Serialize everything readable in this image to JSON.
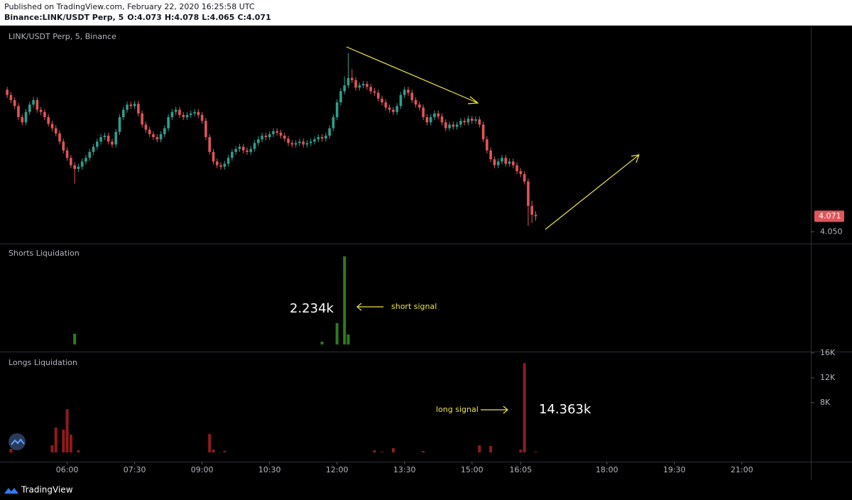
{
  "header": {
    "published": "Published on TradingView.com, February 22, 2020 16:25:58 UTC",
    "symbol": "Binance:LINK/USDT Perp, 5",
    "ohlc_labels": [
      "O:",
      "H:",
      "L:",
      "C:"
    ]
  },
  "footer": {
    "brand": "TradingView"
  },
  "chart_data": [
    {
      "type": "candlestick",
      "title": "LINK/USDT Perp, 5, Binance",
      "up_color": "#2f9e8c",
      "down_color": "#e0555a",
      "xlim": [
        "04:38",
        "22:32"
      ],
      "ylim": [
        4.034,
        4.325
      ],
      "yticks": [
        {
          "value": 4.05,
          "label": "4.050"
        }
      ],
      "x": [
        "04:40",
        "04:45",
        "04:50",
        "04:55",
        "05:00",
        "05:05",
        "05:10",
        "05:15",
        "05:20",
        "05:25",
        "05:30",
        "05:35",
        "05:40",
        "05:45",
        "05:50",
        "05:55",
        "06:00",
        "06:05",
        "06:10",
        "06:15",
        "06:20",
        "06:25",
        "06:30",
        "06:35",
        "06:40",
        "06:45",
        "06:50",
        "06:55",
        "07:00",
        "07:05",
        "07:10",
        "07:15",
        "07:20",
        "07:25",
        "07:30",
        "07:35",
        "07:40",
        "07:45",
        "07:50",
        "07:55",
        "08:00",
        "08:05",
        "08:10",
        "08:15",
        "08:20",
        "08:25",
        "08:30",
        "08:35",
        "08:40",
        "08:45",
        "08:50",
        "08:55",
        "09:00",
        "09:05",
        "09:10",
        "09:15",
        "09:20",
        "09:25",
        "09:30",
        "09:35",
        "09:40",
        "09:45",
        "09:50",
        "09:55",
        "10:00",
        "10:05",
        "10:10",
        "10:15",
        "10:20",
        "10:25",
        "10:30",
        "10:35",
        "10:40",
        "10:45",
        "10:50",
        "10:55",
        "11:00",
        "11:05",
        "11:10",
        "11:15",
        "11:20",
        "11:25",
        "11:30",
        "11:35",
        "11:40",
        "11:45",
        "11:50",
        "11:55",
        "12:00",
        "12:05",
        "12:10",
        "12:15",
        "12:20",
        "12:25",
        "12:30",
        "12:35",
        "12:40",
        "12:45",
        "12:50",
        "12:55",
        "13:00",
        "13:05",
        "13:10",
        "13:15",
        "13:20",
        "13:25",
        "13:30",
        "13:35",
        "13:40",
        "13:45",
        "13:50",
        "13:55",
        "14:00",
        "14:05",
        "14:10",
        "14:15",
        "14:20",
        "14:25",
        "14:30",
        "14:35",
        "14:40",
        "14:45",
        "14:50",
        "14:55",
        "15:00",
        "15:05",
        "15:10",
        "15:15",
        "15:20",
        "15:25",
        "15:30",
        "15:35",
        "15:40",
        "15:45",
        "15:50",
        "15:55",
        "16:00",
        "16:05",
        "16:10",
        "16:15",
        "16:20",
        "16:25"
      ],
      "open": [
        4.242,
        4.235,
        4.228,
        4.22,
        4.205,
        4.198,
        4.212,
        4.222,
        4.228,
        4.215,
        4.212,
        4.205,
        4.196,
        4.19,
        4.183,
        4.172,
        4.16,
        4.15,
        4.14,
        4.135,
        4.138,
        4.145,
        4.15,
        4.158,
        4.165,
        4.172,
        4.178,
        4.18,
        4.172,
        4.168,
        4.185,
        4.205,
        4.215,
        4.222,
        4.22,
        4.223,
        4.21,
        4.195,
        4.188,
        4.182,
        4.178,
        4.175,
        4.182,
        4.19,
        4.205,
        4.212,
        4.215,
        4.208,
        4.205,
        4.208,
        4.21,
        4.212,
        4.208,
        4.2,
        4.178,
        4.158,
        4.145,
        4.14,
        4.138,
        4.142,
        4.15,
        4.158,
        4.162,
        4.165,
        4.16,
        4.158,
        4.162,
        4.17,
        4.175,
        4.18,
        4.178,
        4.182,
        4.186,
        4.184,
        4.18,
        4.176,
        4.17,
        4.168,
        4.17,
        4.172,
        4.168,
        4.17,
        4.172,
        4.175,
        4.178,
        4.176,
        4.18,
        4.19,
        4.205,
        4.225,
        4.24,
        4.248,
        4.258,
        4.255,
        4.245,
        4.248,
        4.25,
        4.246,
        4.24,
        4.238,
        4.23,
        4.225,
        4.218,
        4.215,
        4.212,
        4.22,
        4.235,
        4.242,
        4.238,
        4.228,
        4.222,
        4.218,
        4.205,
        4.198,
        4.205,
        4.21,
        4.206,
        4.198,
        4.19,
        4.195,
        4.192,
        4.195,
        4.2,
        4.198,
        4.203,
        4.2,
        4.202,
        4.195,
        4.175,
        4.16,
        4.148,
        4.14,
        4.145,
        4.15,
        4.142,
        4.145,
        4.14,
        4.132,
        4.128,
        4.118,
        4.085,
        4.073
      ],
      "high": [
        4.246,
        4.239,
        4.232,
        4.224,
        4.209,
        4.216,
        4.226,
        4.232,
        4.232,
        4.219,
        4.216,
        4.209,
        4.2,
        4.194,
        4.187,
        4.176,
        4.164,
        4.154,
        4.144,
        4.142,
        4.149,
        4.154,
        4.162,
        4.169,
        4.176,
        4.182,
        4.184,
        4.184,
        4.176,
        4.189,
        4.209,
        4.219,
        4.226,
        4.226,
        4.227,
        4.227,
        4.214,
        4.199,
        4.192,
        4.186,
        4.182,
        4.186,
        4.194,
        4.209,
        4.216,
        4.219,
        4.219,
        4.212,
        4.212,
        4.214,
        4.216,
        4.216,
        4.212,
        4.204,
        4.182,
        4.162,
        4.149,
        4.144,
        4.146,
        4.154,
        4.162,
        4.166,
        4.169,
        4.169,
        4.164,
        4.166,
        4.174,
        4.179,
        4.184,
        4.184,
        4.186,
        4.19,
        4.19,
        4.188,
        4.184,
        4.18,
        4.174,
        4.174,
        4.176,
        4.176,
        4.174,
        4.176,
        4.179,
        4.182,
        4.182,
        4.184,
        4.194,
        4.209,
        4.229,
        4.244,
        4.26,
        4.292,
        4.27,
        4.259,
        4.252,
        4.254,
        4.254,
        4.25,
        4.244,
        4.242,
        4.234,
        4.229,
        4.222,
        4.219,
        4.224,
        4.239,
        4.246,
        4.246,
        4.242,
        4.232,
        4.226,
        4.222,
        4.209,
        4.209,
        4.214,
        4.214,
        4.21,
        4.202,
        4.199,
        4.199,
        4.199,
        4.204,
        4.204,
        4.207,
        4.207,
        4.206,
        4.206,
        4.199,
        4.179,
        4.164,
        4.152,
        4.149,
        4.154,
        4.154,
        4.149,
        4.149,
        4.144,
        4.136,
        4.132,
        4.122,
        4.092,
        4.078
      ],
      "low": [
        4.231,
        4.224,
        4.216,
        4.201,
        4.194,
        4.194,
        4.208,
        4.218,
        4.211,
        4.208,
        4.201,
        4.192,
        4.186,
        4.179,
        4.168,
        4.156,
        4.146,
        4.136,
        4.115,
        4.131,
        4.134,
        4.141,
        4.146,
        4.154,
        4.161,
        4.168,
        4.174,
        4.168,
        4.164,
        4.164,
        4.181,
        4.201,
        4.211,
        4.216,
        4.216,
        4.206,
        4.191,
        4.184,
        4.178,
        4.174,
        4.171,
        4.171,
        4.178,
        4.186,
        4.201,
        4.208,
        4.204,
        4.201,
        4.201,
        4.204,
        4.206,
        4.204,
        4.196,
        4.174,
        4.154,
        4.141,
        4.136,
        4.134,
        4.134,
        4.138,
        4.146,
        4.154,
        4.158,
        4.156,
        4.154,
        4.154,
        4.158,
        4.166,
        4.171,
        4.174,
        4.174,
        4.178,
        4.18,
        4.176,
        4.172,
        4.166,
        4.164,
        4.164,
        4.166,
        4.164,
        4.164,
        4.166,
        4.168,
        4.171,
        4.172,
        4.172,
        4.176,
        4.186,
        4.201,
        4.221,
        4.236,
        4.244,
        4.251,
        4.241,
        4.241,
        4.244,
        4.242,
        4.236,
        4.234,
        4.226,
        4.221,
        4.214,
        4.211,
        4.208,
        4.208,
        4.216,
        4.231,
        4.234,
        4.224,
        4.218,
        4.214,
        4.201,
        4.194,
        4.194,
        4.201,
        4.202,
        4.194,
        4.186,
        4.186,
        4.188,
        4.188,
        4.191,
        4.194,
        4.194,
        4.196,
        4.196,
        4.191,
        4.171,
        4.156,
        4.144,
        4.136,
        4.136,
        4.141,
        4.138,
        4.138,
        4.136,
        4.128,
        4.124,
        4.114,
        4.058,
        4.062,
        4.065
      ],
      "close": [
        4.235,
        4.228,
        4.22,
        4.205,
        4.198,
        4.212,
        4.222,
        4.228,
        4.215,
        4.212,
        4.205,
        4.196,
        4.19,
        4.183,
        4.172,
        4.16,
        4.15,
        4.14,
        4.135,
        4.138,
        4.145,
        4.15,
        4.158,
        4.165,
        4.172,
        4.178,
        4.18,
        4.172,
        4.168,
        4.185,
        4.205,
        4.215,
        4.222,
        4.22,
        4.223,
        4.21,
        4.195,
        4.188,
        4.182,
        4.178,
        4.175,
        4.182,
        4.19,
        4.205,
        4.212,
        4.215,
        4.208,
        4.205,
        4.208,
        4.21,
        4.212,
        4.208,
        4.2,
        4.178,
        4.158,
        4.145,
        4.14,
        4.138,
        4.142,
        4.15,
        4.158,
        4.162,
        4.165,
        4.16,
        4.158,
        4.162,
        4.17,
        4.175,
        4.18,
        4.178,
        4.182,
        4.186,
        4.184,
        4.18,
        4.176,
        4.17,
        4.168,
        4.17,
        4.172,
        4.168,
        4.17,
        4.172,
        4.175,
        4.178,
        4.176,
        4.18,
        4.19,
        4.205,
        4.225,
        4.24,
        4.248,
        4.258,
        4.255,
        4.245,
        4.248,
        4.25,
        4.246,
        4.24,
        4.238,
        4.23,
        4.225,
        4.218,
        4.215,
        4.212,
        4.22,
        4.235,
        4.242,
        4.238,
        4.228,
        4.222,
        4.218,
        4.205,
        4.198,
        4.205,
        4.21,
        4.206,
        4.198,
        4.19,
        4.195,
        4.192,
        4.195,
        4.2,
        4.198,
        4.203,
        4.2,
        4.202,
        4.195,
        4.175,
        4.16,
        4.148,
        4.14,
        4.145,
        4.15,
        4.142,
        4.145,
        4.14,
        4.132,
        4.128,
        4.118,
        4.085,
        4.073,
        4.071
      ]
    },
    {
      "type": "bar",
      "title": "Shorts Liquidation",
      "color": "#2f7a1f",
      "xlim": [
        "04:38",
        "22:32"
      ],
      "ylim": [
        -180,
        2520
      ],
      "x": [
        "06:10",
        "11:40",
        "12:00",
        "12:10",
        "12:15"
      ],
      "values": [
        270,
        72,
        540,
        2234,
        252
      ],
      "annotations": [
        "2.234k",
        "short signal"
      ]
    },
    {
      "type": "bar",
      "title": "Longs Liquidation",
      "color": "#8e1c1c",
      "xlim": [
        "04:38",
        "22:32"
      ],
      "ylim": [
        -1490,
        16000
      ],
      "yticks": [
        {
          "value": 8000,
          "label": "8K"
        },
        {
          "value": 12000,
          "label": "12K"
        },
        {
          "value": 16000,
          "label": "16K"
        }
      ],
      "xticks": [
        "06:00",
        "07:30",
        "09:00",
        "10:30",
        "12:00",
        "13:30",
        "15:00",
        "16:05",
        "18:00",
        "19:30",
        "21:00"
      ],
      "x": [
        "04:45",
        "05:40",
        "05:45",
        "05:55",
        "06:00",
        "06:05",
        "06:15",
        "09:10",
        "09:15",
        "09:30",
        "12:50",
        "13:00",
        "13:15",
        "13:55",
        "15:10",
        "15:25",
        "16:05",
        "16:10",
        "16:25"
      ],
      "values": [
        570,
        1140,
        4000,
        3660,
        6970,
        2860,
        340,
        2970,
        460,
        230,
        340,
        110,
        690,
        230,
        1140,
        1030,
        460,
        14363,
        110
      ],
      "annotations": [
        "14.363k",
        "long signal"
      ]
    }
  ]
}
